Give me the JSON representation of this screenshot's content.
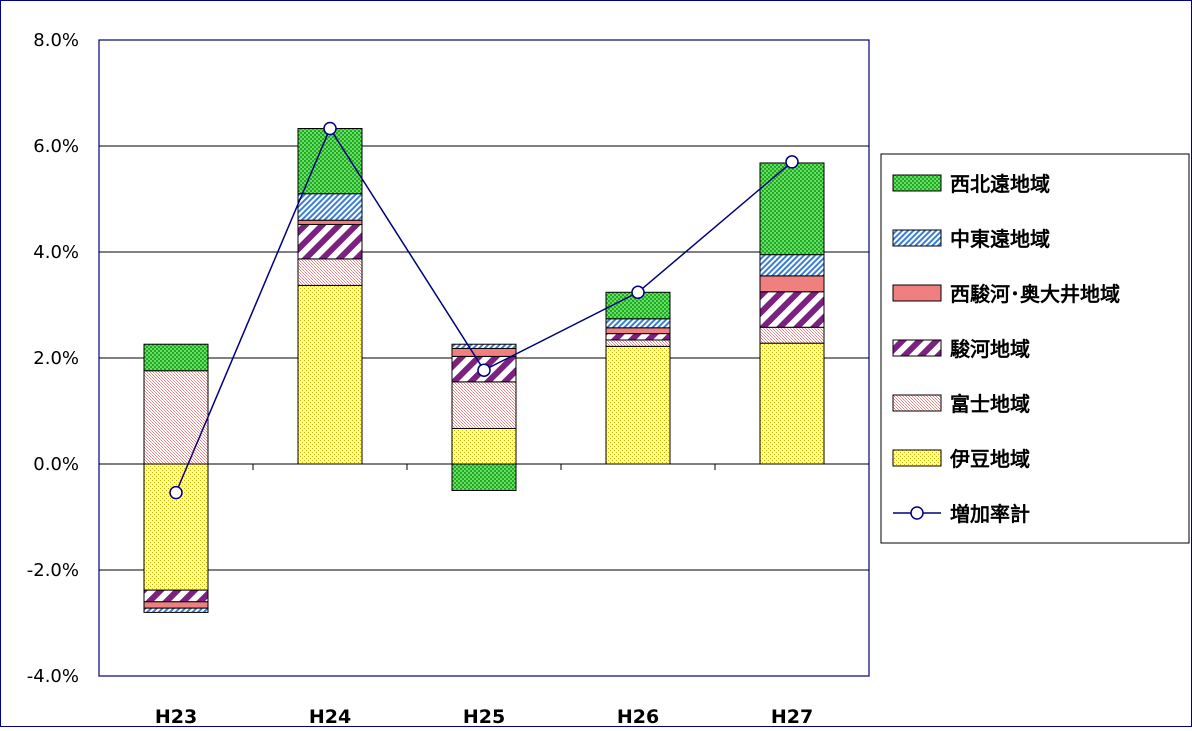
{
  "chart_data": {
    "type": "bar",
    "stacked": true,
    "categories": [
      "H23",
      "H24",
      "H25",
      "H26",
      "H27"
    ],
    "y_ticks": [
      "8.0%",
      "6.0%",
      "4.0%",
      "2.0%",
      "0.0%",
      "-2.0%",
      "-4.0%"
    ],
    "ylim": [
      -4.0,
      8.0
    ],
    "grid": true,
    "legend_position": "right",
    "series": [
      {
        "name": "伊豆地域",
        "color": "#ffff99",
        "pattern": "small-dots",
        "values": [
          -2.38,
          3.37,
          0.67,
          2.22,
          2.28
        ]
      },
      {
        "name": "富士地域",
        "color": "#f4a0a0",
        "pattern": "fine-dots",
        "values": [
          1.76,
          0.5,
          0.88,
          0.12,
          0.3
        ]
      },
      {
        "name": "駿河地域",
        "color": "#7b2180",
        "pattern": "wide-diagonal",
        "values": [
          -0.22,
          0.65,
          0.48,
          0.12,
          0.67
        ]
      },
      {
        "name": "西駿河･奥大井地域",
        "color": "#f08080",
        "pattern": "solid",
        "values": [
          -0.12,
          0.08,
          0.15,
          0.11,
          0.3
        ]
      },
      {
        "name": "中東遠地域",
        "color": "#3a7fd5",
        "pattern": "narrow-diagonal",
        "values": [
          -0.08,
          0.5,
          0.08,
          0.17,
          0.4
        ]
      },
      {
        "name": "西北遠地域",
        "color": "#33cc33",
        "pattern": "checker",
        "values": [
          0.5,
          1.23,
          -0.5,
          0.5,
          1.73
        ]
      }
    ],
    "line_series": {
      "name": "増加率計",
      "color": "#000080",
      "values": [
        -0.54,
        6.33,
        1.77,
        3.24,
        5.7
      ]
    }
  }
}
